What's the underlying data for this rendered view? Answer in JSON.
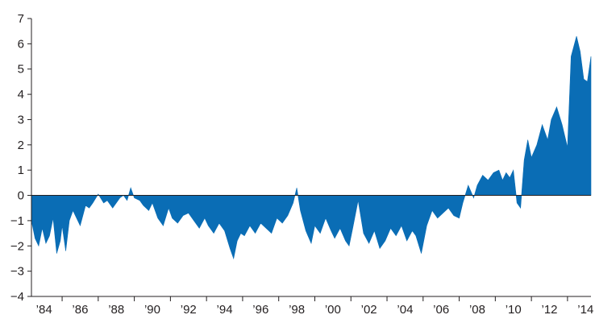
{
  "chart_data": {
    "type": "area",
    "title": "",
    "xlabel": "",
    "ylabel": "",
    "ylim": [
      -4,
      7
    ],
    "y_ticks": [
      "7",
      "6",
      "5",
      "4",
      "3",
      "2",
      "1",
      "0",
      "−1",
      "−2",
      "−3",
      "−4"
    ],
    "xlim": [
      1983.3,
      2014.3
    ],
    "x_ticks": [
      "’84",
      "’86",
      "’88",
      "’90",
      "’92",
      "’94",
      "’96",
      "’98",
      "’00",
      "’02",
      "’04",
      "’06",
      "’08",
      "’10",
      "’12",
      "’14"
    ],
    "x_tick_years": [
      1984,
      1986,
      1988,
      1990,
      1992,
      1994,
      1996,
      1998,
      2000,
      2002,
      2004,
      2006,
      2008,
      2010,
      2012,
      2014
    ],
    "grid": false,
    "fill_color": "#0a6db5",
    "series": [
      {
        "x": [
          1983.3,
          1983.5,
          1983.7,
          1983.9,
          1984.1,
          1984.3,
          1984.5,
          1984.7,
          1984.9,
          1985.0,
          1985.2,
          1985.4,
          1985.6,
          1985.8,
          1986.0,
          1986.3,
          1986.5,
          1986.7,
          1987.0,
          1987.3,
          1987.5,
          1987.8,
          1988.0,
          1988.2,
          1988.4,
          1988.6,
          1988.8,
          1989.0,
          1989.3,
          1989.5,
          1989.8,
          1990.0,
          1990.3,
          1990.6,
          1990.9,
          1991.1,
          1991.4,
          1991.7,
          1992.0,
          1992.3,
          1992.6,
          1992.9,
          1993.1,
          1993.4,
          1993.7,
          1994.0,
          1994.3,
          1994.5,
          1994.7,
          1994.9,
          1995.1,
          1995.4,
          1995.7,
          1996.0,
          1996.3,
          1996.6,
          1996.9,
          1997.2,
          1997.5,
          1997.8,
          1998.0,
          1998.2,
          1998.5,
          1998.8,
          1999.0,
          1999.3,
          1999.6,
          1999.9,
          2000.1,
          2000.4,
          2000.7,
          2000.9,
          2001.1,
          2001.4,
          2001.7,
          2002.0,
          2002.3,
          2002.6,
          2002.9,
          2003.2,
          2003.5,
          2003.8,
          2004.1,
          2004.4,
          2004.6,
          2004.9,
          2005.2,
          2005.5,
          2005.8,
          2006.1,
          2006.4,
          2006.7,
          2007.0,
          2007.2,
          2007.5,
          2007.8,
          2008.0,
          2008.3,
          2008.6,
          2008.9,
          2009.2,
          2009.4,
          2009.6,
          2009.8,
          2010.0,
          2010.2,
          2010.4,
          2010.6,
          2010.8,
          2011.0,
          2011.3,
          2011.6,
          2011.9,
          2012.1,
          2012.4,
          2012.7,
          2013.0,
          2013.2,
          2013.5,
          2013.7,
          2013.9,
          2014.1,
          2014.3
        ],
        "y": [
          -1.0,
          -1.7,
          -2.0,
          -1.3,
          -1.9,
          -1.6,
          -0.9,
          -2.3,
          -1.8,
          -1.2,
          -2.2,
          -1.0,
          -0.6,
          -0.9,
          -1.2,
          -0.4,
          -0.5,
          -0.3,
          0.05,
          -0.3,
          -0.2,
          -0.5,
          -0.3,
          -0.1,
          0.0,
          -0.2,
          0.3,
          -0.1,
          -0.2,
          -0.4,
          -0.6,
          -0.3,
          -0.9,
          -1.2,
          -0.5,
          -0.9,
          -1.1,
          -0.8,
          -0.7,
          -1.0,
          -1.3,
          -0.9,
          -1.2,
          -1.5,
          -1.1,
          -1.4,
          -2.1,
          -2.5,
          -1.8,
          -1.5,
          -1.6,
          -1.2,
          -1.5,
          -1.1,
          -1.3,
          -1.5,
          -0.9,
          -1.1,
          -0.8,
          -0.3,
          0.3,
          -0.6,
          -1.4,
          -1.9,
          -1.2,
          -1.5,
          -0.9,
          -1.4,
          -1.7,
          -1.3,
          -1.8,
          -2.0,
          -1.3,
          -0.2,
          -1.5,
          -1.9,
          -1.4,
          -2.1,
          -1.8,
          -1.3,
          -1.6,
          -1.2,
          -1.8,
          -1.4,
          -1.6,
          -2.3,
          -1.2,
          -0.6,
          -0.9,
          -0.7,
          -0.5,
          -0.8,
          -0.9,
          -0.3,
          0.4,
          -0.1,
          0.4,
          0.8,
          0.6,
          0.9,
          1.0,
          0.6,
          0.9,
          0.7,
          1.0,
          -0.3,
          -0.5,
          1.4,
          2.2,
          1.5,
          2.0,
          2.8,
          2.2,
          3.0,
          3.5,
          2.8,
          1.9,
          5.5,
          6.3,
          5.7,
          4.6,
          4.5,
          5.5
        ]
      }
    ]
  }
}
